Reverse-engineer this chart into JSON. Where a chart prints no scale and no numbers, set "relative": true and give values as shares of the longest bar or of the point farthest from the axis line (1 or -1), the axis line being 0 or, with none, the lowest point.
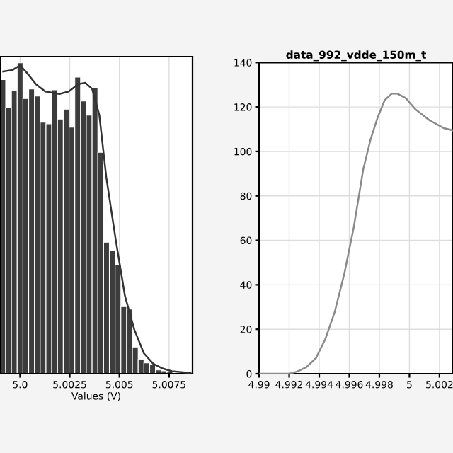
{
  "chart_data": [
    {
      "type": "histogram",
      "relative": true,
      "xlabel": "Values (V)",
      "grid": true,
      "tick_labels": "x",
      "color": "#3c3c3c",
      "xlim": [
        4.99899,
        5.00868
      ],
      "xticks": [
        {
          "value": 5.0,
          "label": "5.0"
        },
        5.0025,
        5.005,
        5.0075
      ],
      "bins": [
        4.998985,
        4.999275,
        4.999565,
        4.999855,
        5.000145,
        5.000435,
        5.000725,
        5.001015,
        5.001305,
        5.001595,
        5.001885,
        5.002175,
        5.002465,
        5.002755,
        5.003045,
        5.003335,
        5.003625,
        5.003915,
        5.004205,
        5.004495,
        5.004785,
        5.005075,
        5.005365,
        5.005655,
        5.005945,
        5.006235,
        5.006525,
        5.006815,
        5.007105,
        5.007395,
        5.007685,
        5.007975,
        5.008265
      ],
      "values": [
        0.946,
        0.855,
        0.911,
        1.0,
        0.885,
        0.916,
        0.893,
        0.809,
        0.804,
        0.913,
        0.819,
        0.851,
        0.793,
        0.954,
        0.877,
        0.832,
        0.919,
        0.712,
        0.423,
        0.395,
        0.352,
        0.216,
        0.208,
        0.086,
        0.046,
        0.035,
        0.031,
        0.012,
        0.009,
        0.008,
        null,
        null
      ],
      "series": [
        {
          "type": "line",
          "color": "#333333",
          "x": [
            4.99915,
            4.99962,
            5.0,
            5.00033,
            5.0008,
            5.00127,
            5.00198,
            5.00245,
            5.00292,
            5.00328,
            5.00363,
            5.00399,
            5.00434,
            5.00481,
            5.00528,
            5.00575,
            5.00623,
            5.0067,
            5.00717,
            5.00764,
            5.00858
          ],
          "values": [
            0.972,
            0.977,
            0.992,
            0.969,
            0.931,
            0.908,
            0.9,
            0.908,
            0.931,
            0.936,
            0.916,
            0.832,
            0.632,
            0.433,
            0.25,
            0.142,
            0.066,
            0.032,
            0.017,
            0.008,
            0.002
          ]
        }
      ]
    },
    {
      "type": "line",
      "title": "data_992_vdde_150m_t",
      "grid": true,
      "line_style": "solid",
      "xlim": [
        4.99,
        5.0029
      ],
      "xticks": [
        4.99,
        4.992,
        4.994,
        4.996,
        4.998,
        5,
        5.002
      ],
      "ylim": [
        0,
        140
      ],
      "yticks": [
        0,
        20,
        40,
        60,
        80,
        100,
        120,
        140
      ],
      "series": [
        {
          "color": "#8a8a8a",
          "x": [
            4.99,
            4.992,
            4.99254,
            4.99315,
            4.99378,
            4.9944,
            4.99504,
            4.99567,
            4.9963,
            4.99693,
            4.9974,
            4.99787,
            4.99835,
            4.99882,
            4.9992,
            4.99976,
            5.00039,
            5.00134,
            5.00228,
            5.0029
          ],
          "values": [
            0,
            0,
            1,
            3,
            7,
            15.5,
            28,
            45,
            66,
            92,
            105,
            115,
            123,
            126,
            126,
            124,
            119,
            114,
            110.5,
            109.5
          ]
        }
      ]
    }
  ]
}
